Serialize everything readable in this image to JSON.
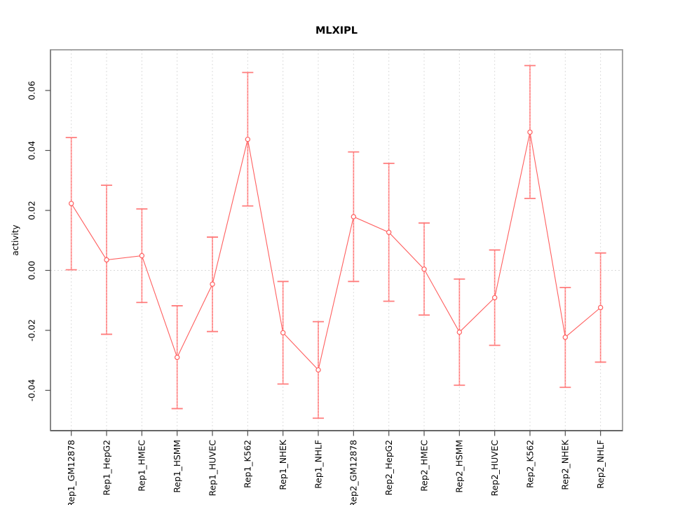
{
  "chart_data": {
    "type": "line",
    "title": "MLXIPL",
    "xlabel": "",
    "ylabel": "activity",
    "legend": "none",
    "categories": [
      "Rep1_GM12878",
      "Rep1_HepG2",
      "Rep1_HMEC",
      "Rep1_HSMM",
      "Rep1_HUVEC",
      "Rep1_K562",
      "Rep1_NHEK",
      "Rep1_NHLF",
      "Rep2_GM12878",
      "Rep2_HepG2",
      "Rep2_HMEC",
      "Rep2_HSMM",
      "Rep2_HUVEC",
      "Rep2_K562",
      "Rep2_NHEK",
      "Rep2_NHLF"
    ],
    "series": [
      {
        "name": "activity",
        "values": [
          0.0223,
          0.0035,
          0.0049,
          -0.029,
          -0.0046,
          0.0437,
          -0.0208,
          -0.0332,
          0.0179,
          0.0127,
          0.0004,
          -0.0206,
          -0.0091,
          0.0461,
          -0.0223,
          -0.0124
        ],
        "ci_high": [
          0.0443,
          0.0284,
          0.0205,
          -0.0118,
          0.0111,
          0.066,
          -0.0037,
          -0.0171,
          0.0395,
          0.0357,
          0.0158,
          -0.0029,
          0.0068,
          0.0683,
          -0.0057,
          0.0058
        ],
        "ci_low": [
          0.0002,
          -0.0213,
          -0.0107,
          -0.0461,
          -0.0204,
          0.0215,
          -0.0379,
          -0.0493,
          -0.0037,
          -0.0103,
          -0.0149,
          -0.0383,
          -0.025,
          0.024,
          -0.039,
          -0.0306
        ]
      }
    ],
    "ylim": [
      -0.054,
      0.073
    ],
    "yticks": [
      -0.04,
      -0.02,
      0,
      0.02,
      0.04,
      0.06
    ],
    "ytick_labels": [
      "-0.04",
      "-0.02",
      "0.00",
      "0.02",
      "0.04",
      "0.06"
    ],
    "grid": {
      "vertical_per_category": true,
      "horizontal": false,
      "zero_line_dotted": true
    },
    "colors": {
      "line": "#ff5f5f",
      "point_stroke": "#ff5f5f",
      "point_fill": "#ffffff",
      "error_bar_solid": "#ffa3a3",
      "error_bar_dotted": "#ff6b6b",
      "error_cap": "#ff7d7d",
      "grid_line": "#dcdcdc",
      "zero_line": "#d8d8d8",
      "box": "#9c9c9c",
      "axis_line": "#4f4f4f",
      "text": "#000000"
    }
  }
}
